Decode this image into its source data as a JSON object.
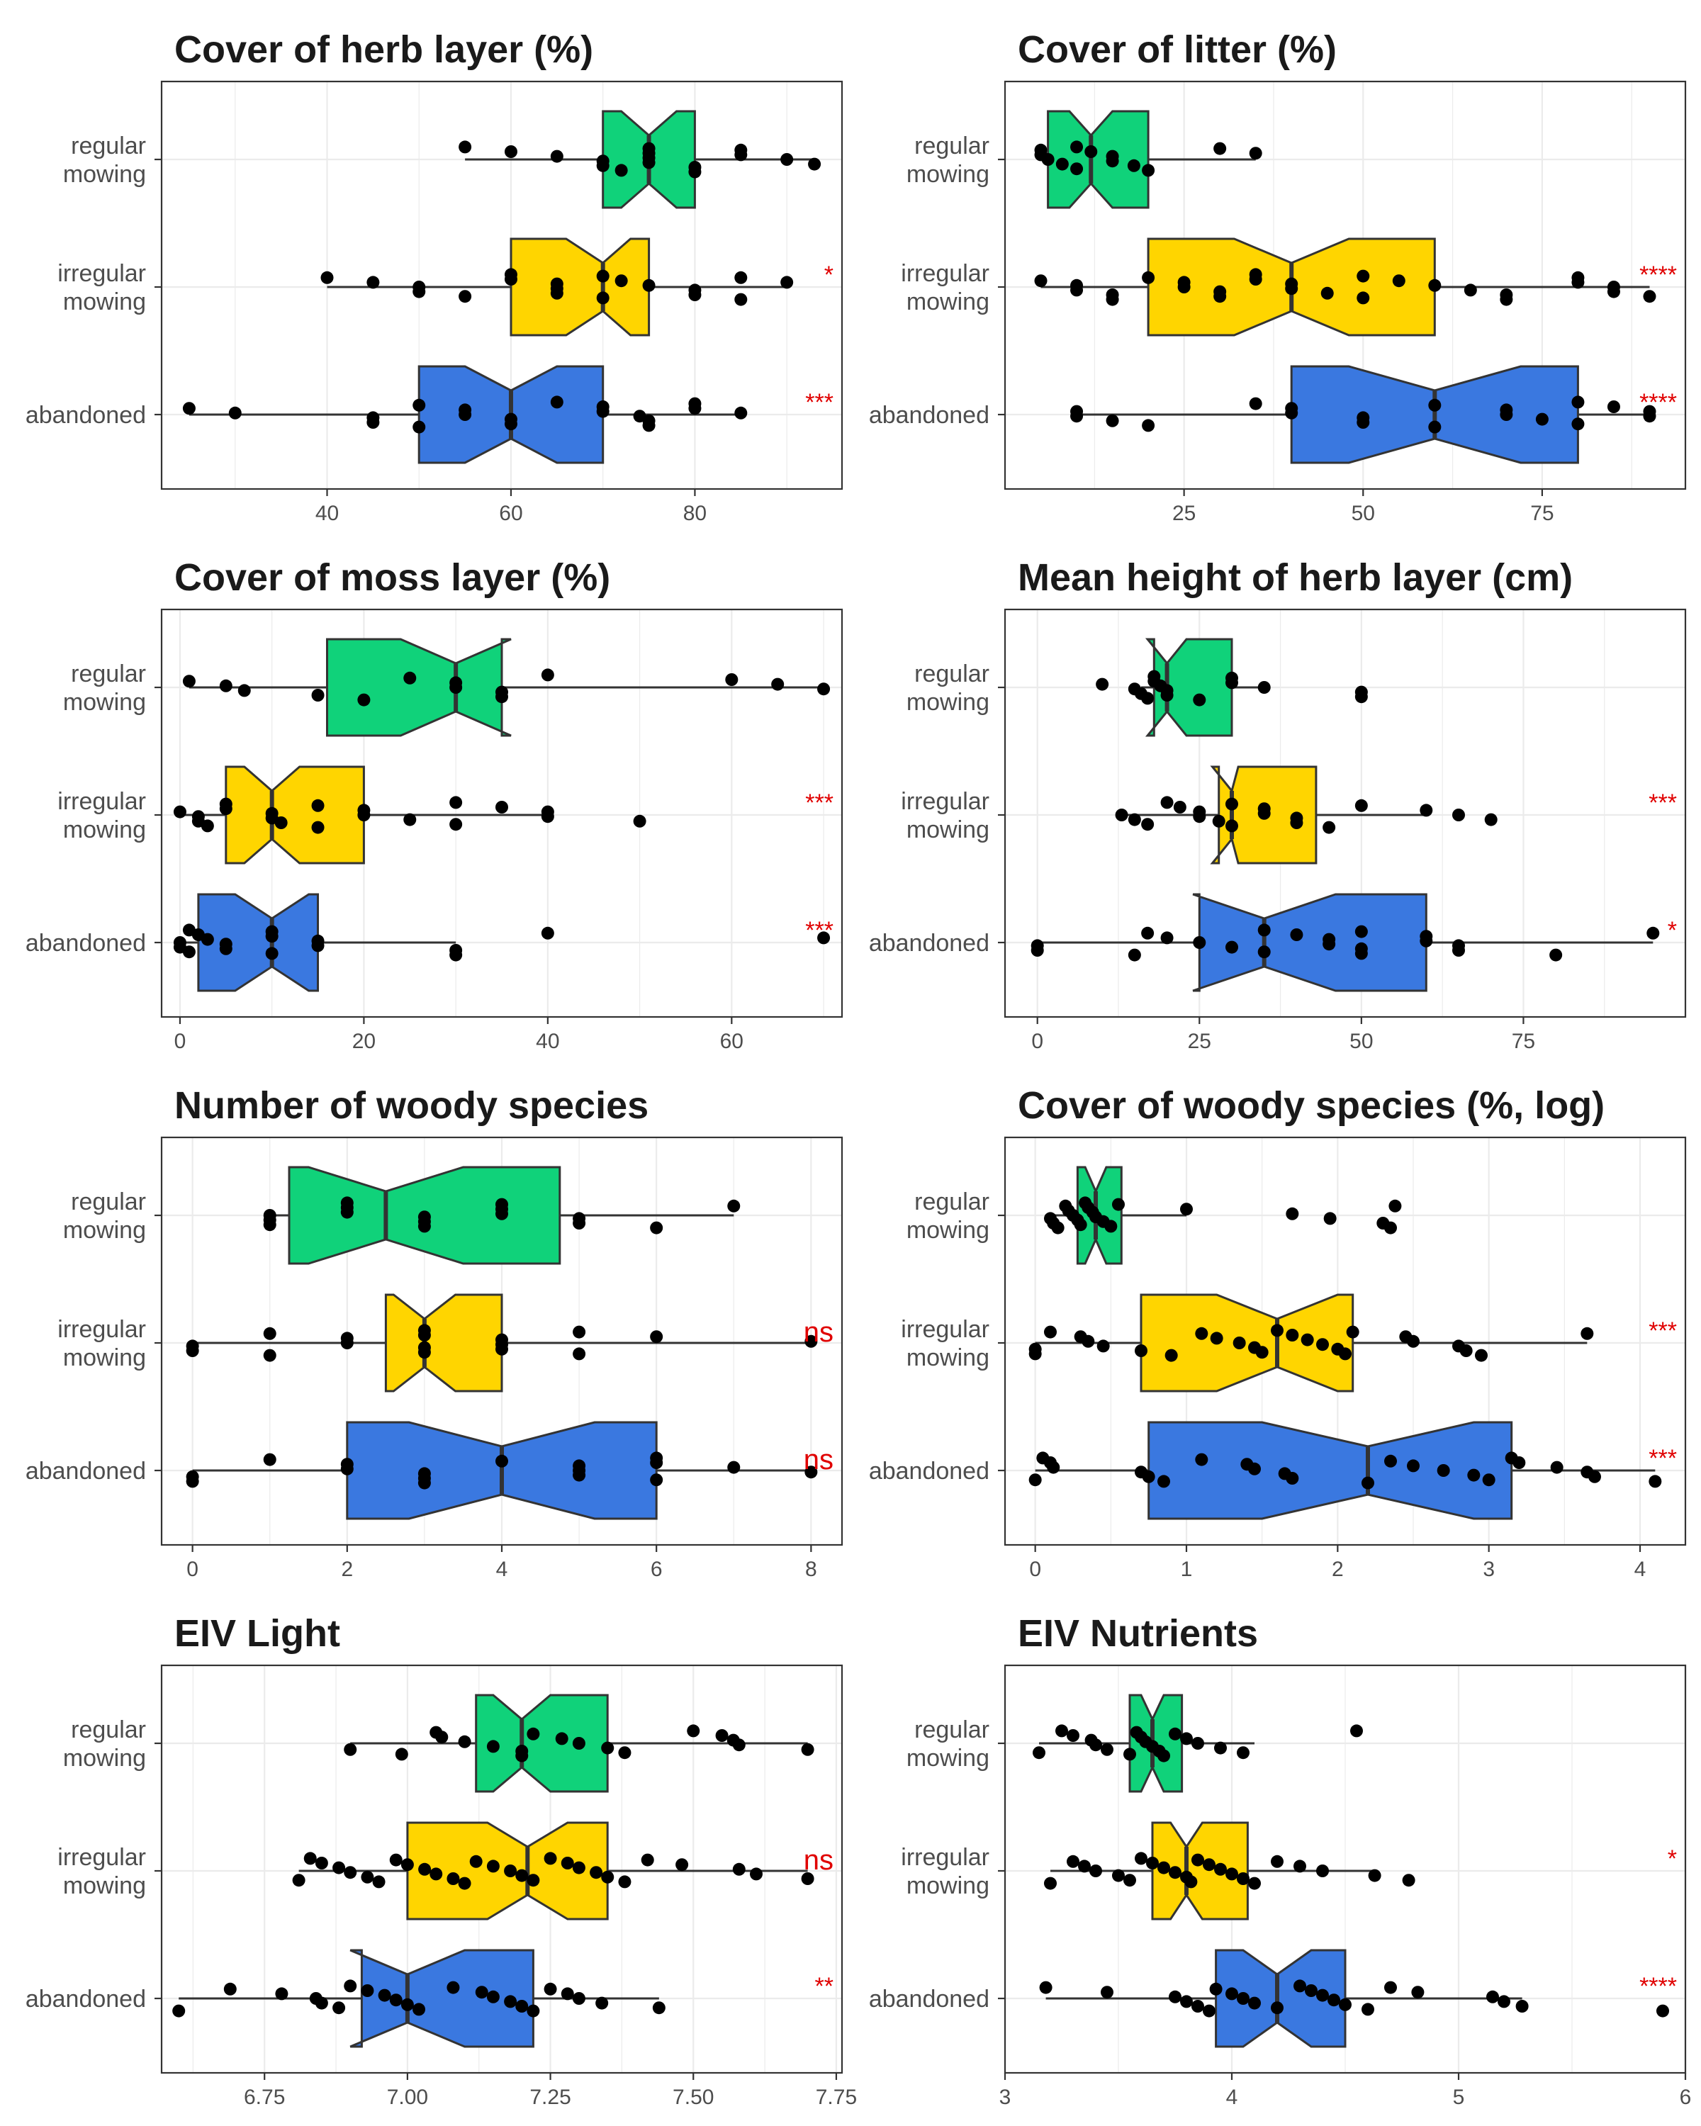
{
  "chart_data": [
    {
      "type": "notched-boxplot",
      "title": "Cover of herb layer (%)",
      "xlim": [
        22,
        96
      ],
      "ticks": [
        40,
        60,
        80
      ],
      "categories": [
        "regular\nmowing",
        "irregular\nmowing",
        "abandoned"
      ],
      "significance": [
        "",
        "*",
        "***"
      ],
      "groups": [
        {
          "min": 55,
          "q1": 70,
          "median": 75,
          "q3": 80,
          "max": 93,
          "notch": [
            72,
            78
          ],
          "points": [
            55,
            60,
            65,
            70,
            70,
            72,
            75,
            75,
            75,
            75,
            80,
            80,
            85,
            85,
            90,
            93
          ]
        },
        {
          "min": 40,
          "q1": 60,
          "median": 70,
          "q3": 75,
          "max": 90,
          "notch": [
            66,
            73
          ],
          "points": [
            40,
            45,
            50,
            50,
            55,
            60,
            60,
            65,
            65,
            65,
            70,
            70,
            72,
            75,
            80,
            80,
            85,
            85,
            90
          ]
        },
        {
          "min": 25,
          "q1": 50,
          "median": 60,
          "q3": 70,
          "max": 85,
          "notch": [
            55,
            65
          ],
          "points": [
            25,
            30,
            45,
            45,
            50,
            50,
            55,
            55,
            60,
            60,
            65,
            70,
            70,
            74,
            75,
            75,
            80,
            80,
            85
          ]
        }
      ]
    },
    {
      "type": "notched-boxplot",
      "title": "Cover of litter (%)",
      "xlim": [
        0,
        95
      ],
      "ticks": [
        25,
        50,
        75
      ],
      "categories": [
        "regular\nmowing",
        "irregular\nmowing",
        "abandoned"
      ],
      "significance": [
        "",
        "****",
        "****"
      ],
      "groups": [
        {
          "min": 5,
          "q1": 6,
          "median": 12,
          "q3": 20,
          "max": 35,
          "notch": [
            9,
            15
          ],
          "points": [
            5,
            5,
            6,
            8,
            10,
            10,
            12,
            15,
            15,
            18,
            20,
            30,
            35
          ]
        },
        {
          "min": 5,
          "q1": 20,
          "median": 40,
          "q3": 60,
          "max": 90,
          "notch": [
            32,
            48
          ],
          "points": [
            5,
            10,
            10,
            15,
            15,
            20,
            25,
            25,
            30,
            30,
            35,
            35,
            40,
            40,
            45,
            50,
            50,
            55,
            60,
            65,
            70,
            70,
            80,
            80,
            85,
            85,
            90
          ]
        },
        {
          "min": 10,
          "q1": 40,
          "median": 60,
          "q3": 80,
          "max": 90,
          "notch": [
            48,
            72
          ],
          "points": [
            10,
            10,
            15,
            20,
            35,
            40,
            40,
            50,
            50,
            60,
            60,
            70,
            70,
            75,
            80,
            80,
            85,
            90,
            90
          ]
        }
      ]
    },
    {
      "type": "notched-boxplot",
      "title": "Cover of moss layer (%)",
      "xlim": [
        -2,
        72
      ],
      "ticks": [
        0,
        20,
        40,
        60
      ],
      "categories": [
        "regular\nmowing",
        "irregular\nmowing",
        "abandoned"
      ],
      "significance": [
        "",
        "***",
        "***"
      ],
      "groups": [
        {
          "min": 1,
          "q1": 16,
          "median": 30,
          "q3": 35,
          "max": 70,
          "notch": [
            24,
            36
          ],
          "points": [
            1,
            5,
            7,
            15,
            20,
            25,
            30,
            30,
            35,
            35,
            40,
            60,
            65,
            70
          ]
        },
        {
          "min": 0,
          "q1": 5,
          "median": 10,
          "q3": 20,
          "max": 40,
          "notch": [
            7,
            13
          ],
          "points": [
            0,
            2,
            2,
            3,
            5,
            5,
            10,
            10,
            11,
            15,
            15,
            20,
            20,
            25,
            30,
            30,
            35,
            40,
            40,
            50
          ]
        },
        {
          "min": 0,
          "q1": 2,
          "median": 10,
          "q3": 15,
          "max": 30,
          "notch": [
            6,
            14
          ],
          "points": [
            0,
            0,
            1,
            1,
            2,
            3,
            5,
            5,
            10,
            10,
            10,
            15,
            15,
            30,
            30,
            40,
            70
          ]
        }
      ]
    },
    {
      "type": "notched-boxplot",
      "title": "Mean height of herb layer (cm)",
      "xlim": [
        -5,
        100
      ],
      "ticks": [
        0,
        25,
        50,
        75
      ],
      "categories": [
        "regular\nmowing",
        "irregular\nmowing",
        "abandoned"
      ],
      "significance": [
        "",
        "***",
        "*"
      ],
      "groups": [
        {
          "min": 16,
          "q1": 18,
          "median": 20,
          "q3": 30,
          "max": 35,
          "notch": [
            17,
            23
          ],
          "points": [
            10,
            15,
            16,
            17,
            18,
            18,
            19,
            20,
            20,
            25,
            30,
            30,
            35,
            50,
            50
          ]
        },
        {
          "min": 13,
          "q1": 28,
          "median": 30,
          "q3": 43,
          "max": 60,
          "notch": [
            27,
            31
          ],
          "points": [
            13,
            15,
            17,
            20,
            22,
            25,
            25,
            28,
            30,
            30,
            35,
            35,
            40,
            40,
            45,
            50,
            60,
            65,
            70
          ]
        },
        {
          "min": 0,
          "q1": 25,
          "median": 35,
          "q3": 60,
          "max": 95,
          "notch": [
            24,
            46
          ],
          "points": [
            0,
            0,
            15,
            17,
            20,
            25,
            30,
            35,
            35,
            40,
            45,
            45,
            50,
            50,
            50,
            60,
            60,
            65,
            65,
            80,
            95
          ]
        }
      ]
    },
    {
      "type": "notched-boxplot",
      "title": "Number of woody species",
      "xlim": [
        -0.4,
        8.4
      ],
      "ticks": [
        0,
        2,
        4,
        6,
        8
      ],
      "categories": [
        "regular\nmowing",
        "irregular\nmowing",
        "abandoned"
      ],
      "significance": [
        "",
        "ns",
        "ns"
      ],
      "groups": [
        {
          "min": 1,
          "q1": 1.25,
          "median": 2.5,
          "q3": 4.75,
          "max": 7,
          "notch": [
            1.5,
            3.5
          ],
          "points": [
            1,
            1,
            1,
            2,
            2,
            2,
            3,
            3,
            3,
            4,
            4,
            4,
            5,
            5,
            6,
            7
          ]
        },
        {
          "min": 0,
          "q1": 2.5,
          "median": 3,
          "q3": 4,
          "max": 8,
          "notch": [
            2.6,
            3.4
          ],
          "points": [
            0,
            0,
            1,
            1,
            2,
            2,
            3,
            3,
            3,
            3,
            4,
            4,
            4,
            5,
            5,
            6,
            8
          ]
        },
        {
          "min": 0,
          "q1": 2,
          "median": 4,
          "q3": 6,
          "max": 8,
          "notch": [
            2.8,
            5.2
          ],
          "points": [
            0,
            0,
            1,
            2,
            2,
            3,
            3,
            3,
            4,
            5,
            5,
            5,
            6,
            6,
            6,
            7,
            8
          ]
        }
      ]
    },
    {
      "type": "notched-boxplot",
      "title": "Cover of woody species (%, log)",
      "xlim": [
        -0.2,
        4.3
      ],
      "ticks": [
        0,
        1,
        2,
        3,
        4
      ],
      "categories": [
        "regular\nmowing",
        "irregular\nmowing",
        "abandoned"
      ],
      "significance": [
        "",
        "***",
        "***"
      ],
      "groups": [
        {
          "min": 0.1,
          "q1": 0.28,
          "median": 0.4,
          "q3": 0.57,
          "max": 1.0,
          "notch": [
            0.33,
            0.47
          ],
          "points": [
            0.1,
            0.12,
            0.15,
            0.2,
            0.22,
            0.25,
            0.28,
            0.3,
            0.33,
            0.35,
            0.38,
            0.4,
            0.45,
            0.5,
            0.55,
            1.0,
            1.7,
            1.95,
            2.3,
            2.35,
            2.38
          ]
        },
        {
          "min": 0,
          "q1": 0.7,
          "median": 1.6,
          "q3": 2.1,
          "max": 3.65,
          "notch": [
            1.2,
            2.0
          ],
          "points": [
            0,
            0,
            0.1,
            0.3,
            0.35,
            0.45,
            0.7,
            0.9,
            1.1,
            1.2,
            1.35,
            1.45,
            1.5,
            1.6,
            1.7,
            1.8,
            1.9,
            2.0,
            2.05,
            2.1,
            2.45,
            2.5,
            2.8,
            2.85,
            2.95,
            3.65
          ]
        },
        {
          "min": 0,
          "q1": 0.75,
          "median": 2.2,
          "q3": 3.15,
          "max": 4.1,
          "notch": [
            1.5,
            2.9
          ],
          "points": [
            0,
            0.05,
            0.1,
            0.12,
            0.7,
            0.75,
            0.85,
            1.1,
            1.4,
            1.45,
            1.65,
            1.7,
            2.2,
            2.35,
            2.5,
            2.7,
            2.9,
            3.0,
            3.15,
            3.2,
            3.45,
            3.65,
            3.7,
            4.1
          ]
        }
      ]
    },
    {
      "type": "notched-boxplot",
      "title": "EIV Light",
      "xlim": [
        6.57,
        7.76
      ],
      "ticks": [
        6.75,
        7.0,
        7.25,
        7.5,
        7.75
      ],
      "tick_labels": [
        "6.75",
        "7.00",
        "7.25",
        "7.50",
        "7.75"
      ],
      "categories": [
        "regular\nmowing",
        "irregular\nmowing",
        "abandoned"
      ],
      "significance": [
        "",
        "ns",
        "**"
      ],
      "groups": [
        {
          "min": 6.9,
          "q1": 7.12,
          "median": 7.2,
          "q3": 7.35,
          "max": 7.7,
          "notch": [
            7.15,
            7.25
          ],
          "points": [
            6.9,
            6.99,
            7.05,
            7.06,
            7.1,
            7.15,
            7.2,
            7.2,
            7.22,
            7.27,
            7.3,
            7.35,
            7.38,
            7.5,
            7.55,
            7.57,
            7.58,
            7.7
          ]
        },
        {
          "min": 6.81,
          "q1": 7.0,
          "median": 7.21,
          "q3": 7.35,
          "max": 7.7,
          "notch": [
            7.14,
            7.28
          ],
          "points": [
            6.81,
            6.83,
            6.85,
            6.88,
            6.9,
            6.93,
            6.95,
            6.98,
            7.0,
            7.03,
            7.05,
            7.08,
            7.1,
            7.12,
            7.15,
            7.18,
            7.2,
            7.22,
            7.25,
            7.28,
            7.3,
            7.33,
            7.35,
            7.38,
            7.42,
            7.48,
            7.58,
            7.61,
            7.7
          ]
        },
        {
          "min": 6.6,
          "q1": 6.92,
          "median": 7.0,
          "q3": 7.22,
          "max": 7.44,
          "notch": [
            6.9,
            7.1
          ],
          "points": [
            6.6,
            6.69,
            6.78,
            6.84,
            6.85,
            6.88,
            6.9,
            6.93,
            6.96,
            6.98,
            7.0,
            7.02,
            7.08,
            7.13,
            7.15,
            7.18,
            7.2,
            7.22,
            7.25,
            7.28,
            7.3,
            7.34,
            7.44
          ]
        }
      ]
    },
    {
      "type": "notched-boxplot",
      "title": "EIV Nutrients",
      "xlim": [
        3.0,
        6.0
      ],
      "ticks": [
        3,
        4,
        5,
        6
      ],
      "categories": [
        "regular\nmowing",
        "irregular\nmowing",
        "abandoned"
      ],
      "significance": [
        "",
        "*",
        "****"
      ],
      "groups": [
        {
          "min": 3.15,
          "q1": 3.55,
          "median": 3.65,
          "q3": 3.78,
          "max": 4.1,
          "notch": [
            3.6,
            3.7
          ],
          "points": [
            3.15,
            3.25,
            3.3,
            3.38,
            3.4,
            3.45,
            3.55,
            3.58,
            3.6,
            3.62,
            3.65,
            3.68,
            3.7,
            3.75,
            3.8,
            3.85,
            3.95,
            4.05,
            4.55
          ]
        },
        {
          "min": 3.2,
          "q1": 3.65,
          "median": 3.8,
          "q3": 4.07,
          "max": 4.63,
          "notch": [
            3.73,
            3.87
          ],
          "points": [
            3.2,
            3.3,
            3.35,
            3.4,
            3.5,
            3.55,
            3.6,
            3.65,
            3.7,
            3.75,
            3.8,
            3.82,
            3.85,
            3.9,
            3.95,
            4.0,
            4.05,
            4.1,
            4.2,
            4.3,
            4.4,
            4.63,
            4.78
          ]
        },
        {
          "min": 3.18,
          "q1": 3.93,
          "median": 4.2,
          "q3": 4.5,
          "max": 5.28,
          "notch": [
            4.05,
            4.35
          ],
          "points": [
            3.18,
            3.45,
            3.75,
            3.8,
            3.85,
            3.9,
            3.93,
            4.0,
            4.05,
            4.1,
            4.2,
            4.3,
            4.35,
            4.4,
            4.45,
            4.5,
            4.6,
            4.7,
            4.82,
            5.15,
            5.2,
            5.28,
            5.9
          ]
        }
      ]
    }
  ],
  "colors": {
    "regular_mowing": "#10d27a",
    "irregular_mowing": "#ffd500",
    "abandoned": "#3a78e0",
    "significance": "#e00000",
    "points": "#000000",
    "grid": "#ebebeb",
    "box_outline": "#333333"
  }
}
